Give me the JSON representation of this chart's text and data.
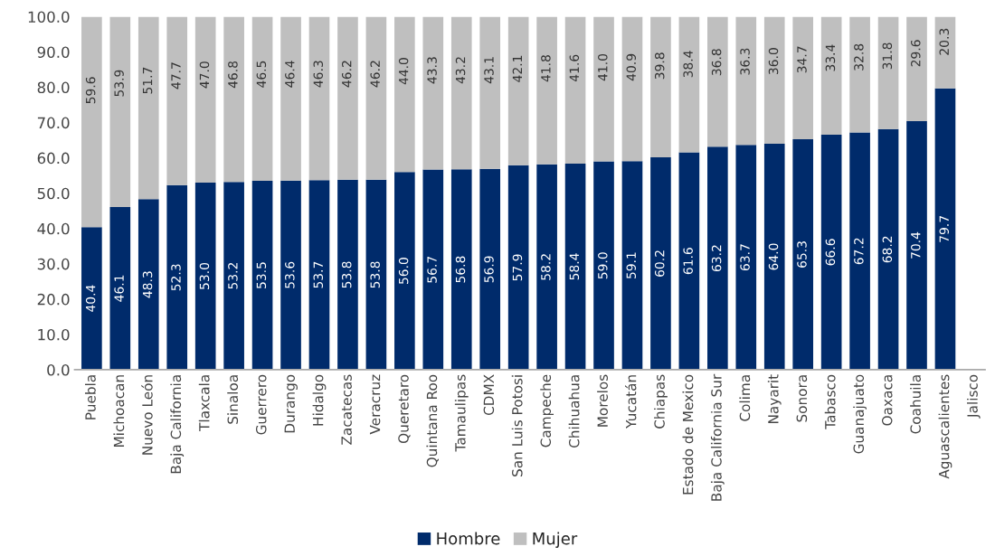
{
  "chart_data": {
    "type": "bar",
    "stacked": true,
    "categories": [
      "Puebla",
      "Michoacan",
      "Nuevo León",
      "Baja California",
      "Tlaxcala",
      "Sinaloa",
      "Guerrero",
      "Durango",
      "Hidalgo",
      "Zacatecas",
      "Veracruz",
      "Queretaro",
      "Quintana Roo",
      "Tamaulipas",
      "CDMX",
      "San Luis Potosi",
      "Campeche",
      "Chihuahua",
      "Morelos",
      "Yucatán",
      "Chiapas",
      "Estado de Mexico",
      "Baja California Sur",
      "Colima",
      "Nayarit",
      "Sonora",
      "Tabasco",
      "Guanajuato",
      "Oaxaca",
      "Coahuila",
      "Aguascalientes",
      "Jalisco"
    ],
    "series": [
      {
        "name": "Hombre",
        "color": "#002b6b",
        "values": [
          40.4,
          46.1,
          48.3,
          52.3,
          53.0,
          53.2,
          53.5,
          53.6,
          53.7,
          53.8,
          53.8,
          56.0,
          56.7,
          56.8,
          56.9,
          57.9,
          58.2,
          58.4,
          59.0,
          59.1,
          60.2,
          61.6,
          63.2,
          63.7,
          64.0,
          65.3,
          66.6,
          67.2,
          68.2,
          70.4,
          79.7,
          null
        ],
        "value_labels": [
          "40.4",
          "46.1",
          "48.3",
          "52.3",
          "53.0",
          "53.2",
          "53.5",
          "53.6",
          "53.7",
          "53.8",
          "53.8",
          "56.0",
          "56.7",
          "56.8",
          "56.9",
          "57.9",
          "58.2",
          "58.4",
          "59.0",
          "59.1",
          "60.2",
          "61.6",
          "63.2",
          "63.7",
          "64.0",
          "65.3",
          "66.6",
          "67.2",
          "68.2",
          "70.4",
          "79.7",
          null
        ]
      },
      {
        "name": "Mujer",
        "color": "#bfbfbf",
        "values": [
          59.6,
          53.9,
          51.7,
          47.7,
          47.0,
          46.8,
          46.5,
          46.4,
          46.3,
          46.2,
          46.2,
          44.0,
          43.3,
          43.2,
          43.1,
          42.1,
          41.8,
          41.6,
          41.0,
          40.9,
          39.8,
          38.4,
          36.8,
          36.3,
          36.0,
          34.7,
          33.4,
          32.8,
          31.8,
          29.6,
          20.3,
          null
        ],
        "value_labels": [
          "59.6",
          "53.9",
          "51.7",
          "47.7",
          "47.0",
          "46.8",
          "46.5",
          "46.4",
          "46.3",
          "46.2",
          "46.2",
          "44.0",
          "43.3",
          "43.2",
          "43.1",
          "42.1",
          "41.8",
          "41.6",
          "41.0",
          "40.9",
          "39.8",
          "38.4",
          "36.8",
          "36.3",
          "36.0",
          "34.7",
          "33.4",
          "32.8",
          "31.8",
          "29.6",
          "20.3",
          null
        ]
      }
    ],
    "ylim": [
      0,
      100
    ],
    "yticks": [
      {
        "value": 0,
        "label": "0.0"
      },
      {
        "value": 10,
        "label": "10.0"
      },
      {
        "value": 20,
        "label": "20.0"
      },
      {
        "value": 30,
        "label": "30.0"
      },
      {
        "value": 40,
        "label": "40.0"
      },
      {
        "value": 50,
        "label": "50.0"
      },
      {
        "value": 60,
        "label": "60.0"
      },
      {
        "value": 70,
        "label": "70.0"
      },
      {
        "value": 80,
        "label": "80.0"
      },
      {
        "value": 90,
        "label": "90.0"
      },
      {
        "value": 100,
        "label": "100.0"
      }
    ],
    "grid": false,
    "legend": "bottom"
  }
}
